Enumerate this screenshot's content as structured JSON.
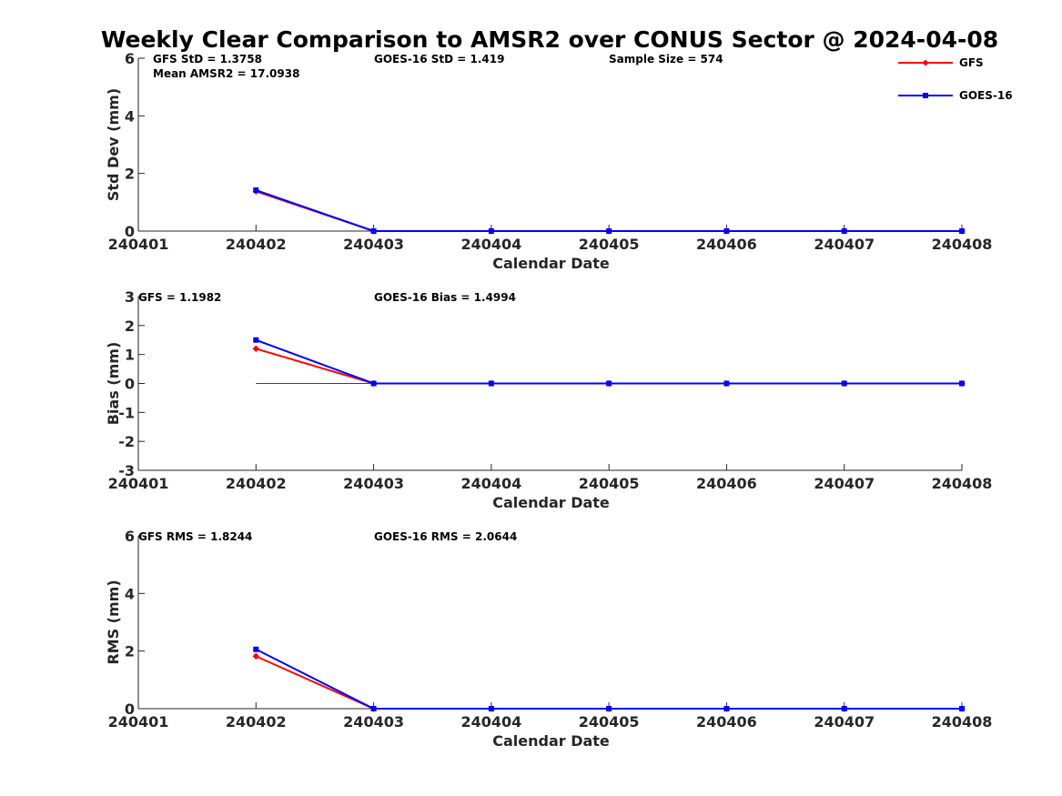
{
  "figure_title": "Weekly Clear Comparison to AMSR2 over CONUS Sector @ 2024-04-08",
  "legend": [
    {
      "label": "GFS",
      "color": "#ff0000",
      "marker": "diamond"
    },
    {
      "label": "GOES-16",
      "color": "#0000ff",
      "marker": "square"
    }
  ],
  "chart_data": [
    {
      "type": "line",
      "xlabel": "Calendar Date",
      "ylabel": "Std Dev (mm)",
      "x": [
        "240401",
        "240402",
        "240403",
        "240404",
        "240405",
        "240406",
        "240407",
        "240408"
      ],
      "xlim": [
        "240401",
        "240408"
      ],
      "ylim": [
        0,
        6
      ],
      "yticks": [
        "0",
        "2",
        "4",
        "6"
      ],
      "zero_line": false,
      "annotations": [
        "GFS StD = 1.3758",
        "GOES-16 StD = 1.419",
        "Sample Size = 574",
        "Mean AMSR2 = 17.0938"
      ],
      "series": [
        {
          "name": "GFS",
          "x": [
            "240402",
            "240403",
            "240404",
            "240405",
            "240406",
            "240407",
            "240408"
          ],
          "values": [
            1.38,
            0,
            0,
            0,
            0,
            0,
            0
          ]
        },
        {
          "name": "GOES-16",
          "x": [
            "240402",
            "240403",
            "240404",
            "240405",
            "240406",
            "240407",
            "240408"
          ],
          "values": [
            1.42,
            0,
            0,
            0,
            0,
            0,
            0
          ]
        }
      ]
    },
    {
      "type": "line",
      "xlabel": "Calendar Date",
      "ylabel": "Bias (mm)",
      "x": [
        "240401",
        "240402",
        "240403",
        "240404",
        "240405",
        "240406",
        "240407",
        "240408"
      ],
      "xlim": [
        "240401",
        "240408"
      ],
      "ylim": [
        -3,
        3
      ],
      "yticks": [
        "-3",
        "-2",
        "-1",
        "0",
        "1",
        "2",
        "3"
      ],
      "zero_line": true,
      "annotations": [
        "GFS = 1.1982",
        "GOES-16 Bias  = 1.4994"
      ],
      "series": [
        {
          "name": "GFS",
          "x": [
            "240402",
            "240403",
            "240404",
            "240405",
            "240406",
            "240407",
            "240408"
          ],
          "values": [
            1.2,
            0,
            0,
            0,
            0,
            0,
            0
          ]
        },
        {
          "name": "GOES-16",
          "x": [
            "240402",
            "240403",
            "240404",
            "240405",
            "240406",
            "240407",
            "240408"
          ],
          "values": [
            1.5,
            0,
            0,
            0,
            0,
            0,
            0
          ]
        }
      ]
    },
    {
      "type": "line",
      "xlabel": "Calendar Date",
      "ylabel": "RMS (mm)",
      "x": [
        "240401",
        "240402",
        "240403",
        "240404",
        "240405",
        "240406",
        "240407",
        "240408"
      ],
      "xlim": [
        "240401",
        "240408"
      ],
      "ylim": [
        0,
        6
      ],
      "yticks": [
        "0",
        "2",
        "4",
        "6"
      ],
      "zero_line": false,
      "annotations": [
        "GFS RMS = 1.8244",
        "GOES-16 RMS = 2.0644"
      ],
      "series": [
        {
          "name": "GFS",
          "x": [
            "240402",
            "240403",
            "240404",
            "240405",
            "240406",
            "240407",
            "240408"
          ],
          "values": [
            1.82,
            0,
            0,
            0,
            0,
            0,
            0
          ]
        },
        {
          "name": "GOES-16",
          "x": [
            "240402",
            "240403",
            "240404",
            "240405",
            "240406",
            "240407",
            "240408"
          ],
          "values": [
            2.06,
            0,
            0,
            0,
            0,
            0,
            0
          ]
        }
      ]
    }
  ]
}
